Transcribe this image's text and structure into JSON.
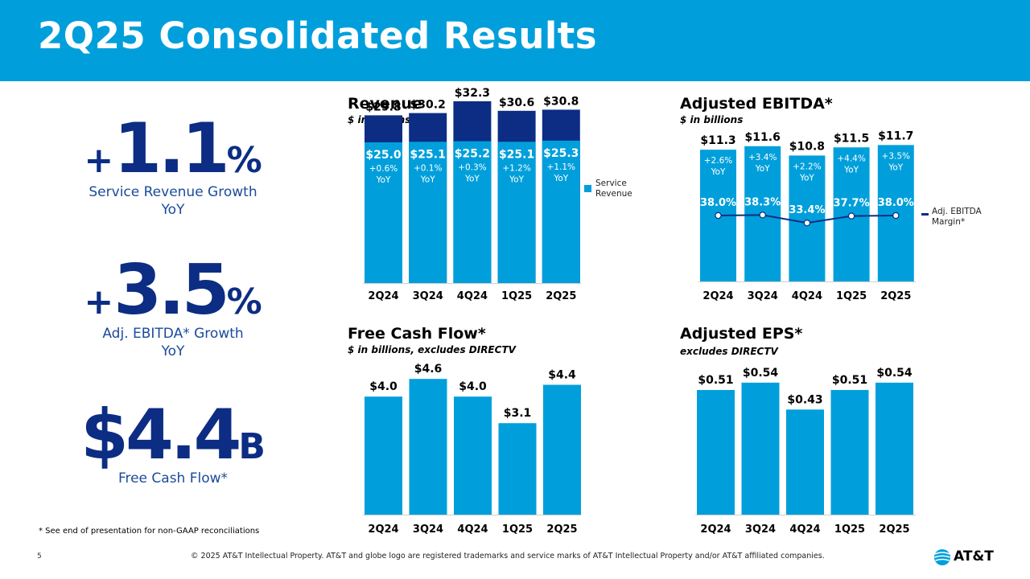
{
  "title": "2Q25 Consolidated Results",
  "kpis": [
    {
      "prefix": "+",
      "number": "1.1",
      "suffix": "%",
      "label1": "Service Revenue Growth",
      "label2": "YoY"
    },
    {
      "prefix": "+",
      "number": "3.5",
      "suffix": "%",
      "label1": "Adj. EBITDA* Growth",
      "label2": "YoY"
    },
    {
      "prefix": "",
      "number": "$4.4",
      "suffix": "B",
      "label1": "Free Cash Flow*",
      "label2": ""
    }
  ],
  "footnote": "* See end of presentation for non-GAAP reconciliations",
  "page_number": "5",
  "copyright": "© 2025 AT&T Intellectual Property.  AT&T and globe logo are registered trademarks and service marks of AT&T Intellectual Property and/or AT&T affiliated companies.",
  "logo_text": "AT&T",
  "colors": {
    "brand_blue": "#009fdb",
    "navy": "#0c2d83"
  },
  "chart_data": [
    {
      "id": "revenue",
      "type": "bar",
      "title": "Revenue",
      "subtitle": "$ in billions",
      "categories": [
        "2Q24",
        "3Q24",
        "4Q24",
        "1Q25",
        "2Q25"
      ],
      "ylim": [
        0,
        35
      ],
      "series": [
        {
          "name": "Total Revenue",
          "values": [
            29.8,
            30.2,
            32.3,
            30.6,
            30.8
          ],
          "labels": [
            "$29.8",
            "$30.2",
            "$32.3",
            "$30.6",
            "$30.8"
          ],
          "color": "#0c2d83"
        },
        {
          "name": "Service Revenue",
          "values": [
            25.0,
            25.1,
            25.2,
            25.1,
            25.3
          ],
          "labels": [
            "$25.0",
            "$25.1",
            "$25.2",
            "$25.1",
            "$25.3"
          ],
          "growth": [
            "+0.6%",
            "+0.1%",
            "+0.3%",
            "+1.2%",
            "+1.1%"
          ],
          "color": "#009fdb"
        }
      ],
      "yoy_label": "YoY",
      "legend": "Service Revenue"
    },
    {
      "id": "ebitda",
      "type": "bar",
      "title": "Adjusted EBITDA*",
      "subtitle": "$ in billions",
      "categories": [
        "2Q24",
        "3Q24",
        "4Q24",
        "1Q25",
        "2Q25"
      ],
      "ylim": [
        0,
        13.4
      ],
      "series": [
        {
          "name": "Adjusted EBITDA",
          "values": [
            11.3,
            11.6,
            10.8,
            11.5,
            11.7
          ],
          "labels": [
            "$11.3",
            "$11.6",
            "$10.8",
            "$11.5",
            "$11.7"
          ],
          "growth": [
            "+2.6%",
            "+3.4%",
            "+2.2%",
            "+4.4%",
            "+3.5%"
          ],
          "color": "#009fdb"
        },
        {
          "name": "Adj. EBITDA Margin*",
          "type": "line",
          "values": [
            38.0,
            38.3,
            33.4,
            37.7,
            38.0
          ],
          "labels": [
            "38.0%",
            "38.3%",
            "33.4%",
            "37.7%",
            "38.0%"
          ],
          "color": "#0c2d83"
        }
      ],
      "yoy_label": "YoY",
      "legend": "Adj. EBITDA Margin*"
    },
    {
      "id": "fcf",
      "type": "bar",
      "title": "Free Cash Flow*",
      "subtitle": "$ in billions, excludes DIRECTV",
      "categories": [
        "2Q24",
        "3Q24",
        "4Q24",
        "1Q25",
        "2Q25"
      ],
      "ylim": [
        0,
        5.4
      ],
      "series": [
        {
          "name": "Free Cash Flow",
          "values": [
            4.0,
            4.6,
            4.0,
            3.1,
            4.4
          ],
          "labels": [
            "$4.0",
            "$4.6",
            "$4.0",
            "$3.1",
            "$4.4"
          ],
          "color": "#009fdb"
        }
      ]
    },
    {
      "id": "eps",
      "type": "bar",
      "title": "Adjusted EPS*",
      "subtitle": "excludes DIRECTV",
      "categories": [
        "2Q24",
        "3Q24",
        "4Q24",
        "1Q25",
        "2Q25"
      ],
      "ylim": [
        0,
        0.6
      ],
      "series": [
        {
          "name": "Adjusted EPS",
          "values": [
            0.51,
            0.54,
            0.43,
            0.51,
            0.54
          ],
          "labels": [
            "$0.51",
            "$0.54",
            "$0.43",
            "$0.51",
            "$0.54"
          ],
          "color": "#009fdb"
        }
      ]
    }
  ]
}
